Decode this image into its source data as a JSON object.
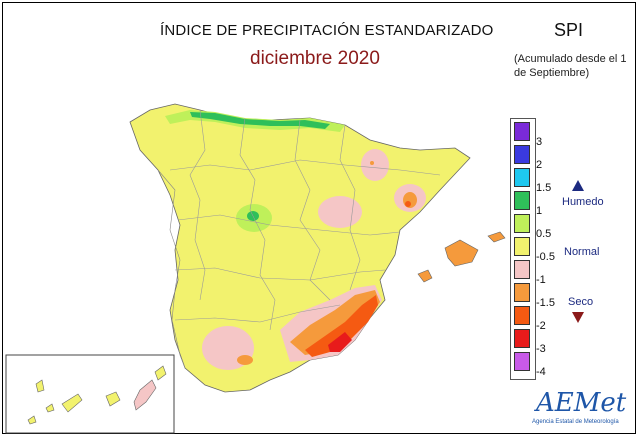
{
  "header": {
    "title": "ÍNDICE DE PRECIPITACIÓN ESTANDARIZADO",
    "subtitle": "diciembre 2020",
    "index_name": "SPI",
    "accumulation_note": "(Acumulado desde el 1 de Septiembre)"
  },
  "legend": {
    "classes": [
      {
        "label": "3",
        "color": "#7a2ad8"
      },
      {
        "label": "2",
        "color": "#3a3ae0"
      },
      {
        "label": "1.5",
        "color": "#1ec8f0"
      },
      {
        "label": "1",
        "color": "#2fbf5a"
      },
      {
        "label": "0.5",
        "color": "#bff05a"
      },
      {
        "label": "-0.5",
        "color": "#f2f26e"
      },
      {
        "label": "-1",
        "color": "#f5c6c6"
      },
      {
        "label": "-1.5",
        "color": "#f59a3c"
      },
      {
        "label": "-2",
        "color": "#f55a12"
      },
      {
        "label": "-3",
        "color": "#e81b1b"
      },
      {
        "label": "-4",
        "color": "#c85ae8"
      }
    ],
    "humid_label": "Humedo",
    "normal_label": "Normal",
    "dry_label": "Seco",
    "humid_arrow_color": "#1c2a80",
    "dry_arrow_color": "#8b1a1a"
  },
  "logo": {
    "name": "AEMet",
    "tagline": "Agencia Estatal de Meteorología"
  }
}
